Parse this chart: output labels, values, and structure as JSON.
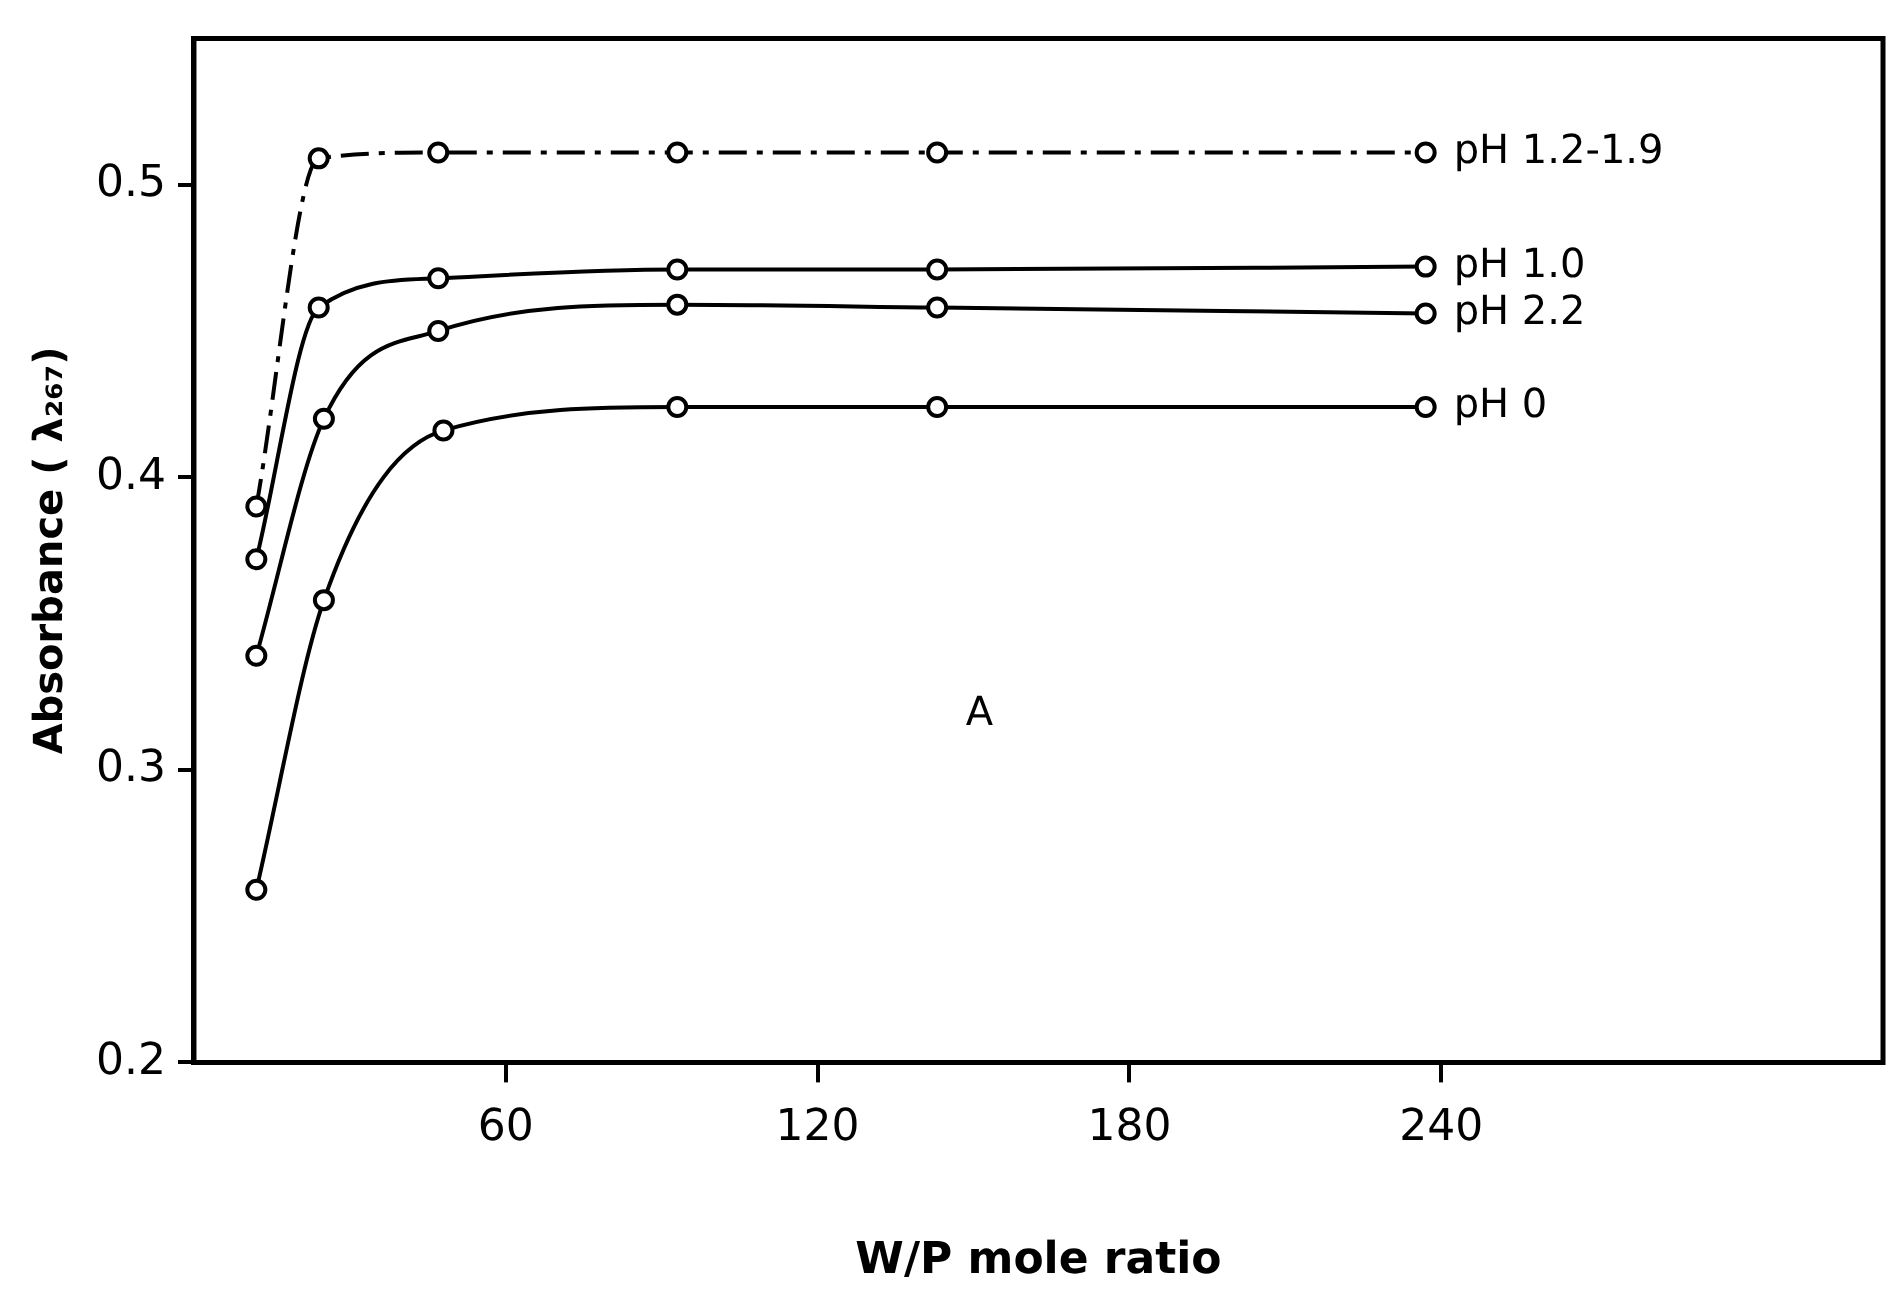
{
  "chart_data": {
    "type": "line",
    "xlabel": "W/P mole ratio",
    "ylabel": "Absorbance ( λ₂₆₇)",
    "xlim": [
      0,
      325
    ],
    "xticks": [
      60,
      120,
      180,
      240
    ],
    "ylim": [
      0.2,
      0.55
    ],
    "yticks": [
      0.2,
      0.3,
      0.4,
      0.5
    ],
    "grid": false,
    "legend": false,
    "marker": "circle",
    "series": [
      {
        "name": "pH 1.2-1.9",
        "color": "#000000",
        "line_style": "dashed",
        "x": [
          12,
          24,
          47,
          93,
          143,
          237
        ],
        "values": [
          0.39,
          0.509,
          0.511,
          0.511,
          0.511,
          0.511
        ]
      },
      {
        "name": "pH 1.0",
        "color": "#000000",
        "line_style": "solid",
        "x": [
          12,
          24,
          47,
          93,
          143,
          237
        ],
        "values": [
          0.372,
          0.458,
          0.468,
          0.471,
          0.471,
          0.472
        ]
      },
      {
        "name": "pH 2.2",
        "color": "#000000",
        "line_style": "solid",
        "x": [
          12,
          25,
          47,
          93,
          143,
          237
        ],
        "values": [
          0.339,
          0.42,
          0.45,
          0.459,
          0.458,
          0.456
        ]
      },
      {
        "name": "pH 0",
        "color": "#000000",
        "line_style": "solid",
        "x": [
          12,
          25,
          48,
          93,
          143,
          237
        ],
        "values": [
          0.259,
          0.358,
          0.416,
          0.424,
          0.424,
          0.424
        ]
      }
    ],
    "annotations": [
      "A"
    ]
  }
}
